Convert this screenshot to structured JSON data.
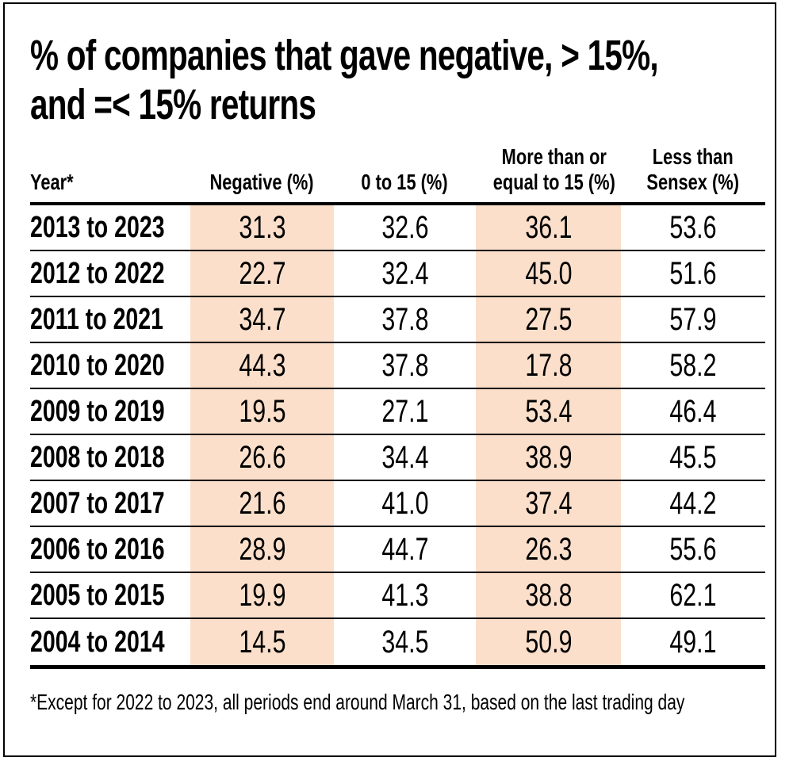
{
  "title_lines": [
    "% of companies that gave negative, > 15%,",
    "and =< 15% returns"
  ],
  "table": {
    "header": [
      {
        "line1": "Year*",
        "line2": ""
      },
      {
        "line1": "Negative (%)",
        "line2": ""
      },
      {
        "line1": "0 to 15 (%)",
        "line2": ""
      },
      {
        "line1": "More than or",
        "line2": "equal to 15 (%)"
      },
      {
        "line1": "Less than",
        "line2": "Sensex (%)"
      }
    ],
    "rows": [
      {
        "year": "2013 to 2023",
        "values": [
          "31.3",
          "32.6",
          "36.1",
          "53.6"
        ]
      },
      {
        "year": "2012 to 2022",
        "values": [
          "22.7",
          "32.4",
          "45.0",
          "51.6"
        ]
      },
      {
        "year": "2011 to 2021",
        "values": [
          "34.7",
          "37.8",
          "27.5",
          "57.9"
        ]
      },
      {
        "year": "2010 to 2020",
        "values": [
          "44.3",
          "37.8",
          "17.8",
          "58.2"
        ]
      },
      {
        "year": "2009 to 2019",
        "values": [
          "19.5",
          "27.1",
          "53.4",
          "46.4"
        ]
      },
      {
        "year": "2008 to 2018",
        "values": [
          "26.6",
          "34.4",
          "38.9",
          "45.5"
        ]
      },
      {
        "year": "2007 to 2017",
        "values": [
          "21.6",
          "41.0",
          "37.4",
          "44.2"
        ]
      },
      {
        "year": "2006 to 2016",
        "values": [
          "28.9",
          "44.7",
          "26.3",
          "55.6"
        ]
      },
      {
        "year": "2005 to 2015",
        "values": [
          "19.9",
          "41.3",
          "38.8",
          "62.1"
        ]
      },
      {
        "year": "2004 to 2014",
        "values": [
          "14.5",
          "34.5",
          "50.9",
          "49.1"
        ]
      }
    ]
  },
  "footnote": "*Except for 2022 to 2023, all periods end around March 31, based on the last trading day",
  "colors": {
    "highlight": "#fbdfca",
    "text": "#000000",
    "rule": "#000000",
    "background": "#ffffff"
  },
  "chart_data": {
    "type": "table",
    "title": "% of companies that gave negative, > 15%, and =< 15% returns",
    "columns": [
      "Year*",
      "Negative (%)",
      "0 to 15 (%)",
      "More than or equal to 15 (%)",
      "Less than Sensex (%)"
    ],
    "highlighted_columns": [
      "Negative (%)",
      "More than or equal to 15 (%)"
    ],
    "categories": [
      "2013 to 2023",
      "2012 to 2022",
      "2011 to 2021",
      "2010 to 2020",
      "2009 to 2019",
      "2008 to 2018",
      "2007 to 2017",
      "2006 to 2016",
      "2005 to 2015",
      "2004 to 2014"
    ],
    "series": [
      {
        "name": "Negative (%)",
        "values": [
          31.3,
          22.7,
          34.7,
          44.3,
          19.5,
          26.6,
          21.6,
          28.9,
          19.9,
          14.5
        ]
      },
      {
        "name": "0 to 15 (%)",
        "values": [
          32.6,
          32.4,
          37.8,
          37.8,
          27.1,
          34.4,
          41.0,
          44.7,
          41.3,
          34.5
        ]
      },
      {
        "name": "More than or equal to 15 (%)",
        "values": [
          36.1,
          45.0,
          27.5,
          17.8,
          53.4,
          38.9,
          37.4,
          26.3,
          38.8,
          50.9
        ]
      },
      {
        "name": "Less than Sensex (%)",
        "values": [
          53.6,
          51.6,
          57.9,
          58.2,
          46.4,
          45.5,
          44.2,
          55.6,
          62.1,
          49.1
        ]
      }
    ],
    "footnote": "*Except for 2022 to 2023, all periods end around March 31, based on the last trading day"
  }
}
